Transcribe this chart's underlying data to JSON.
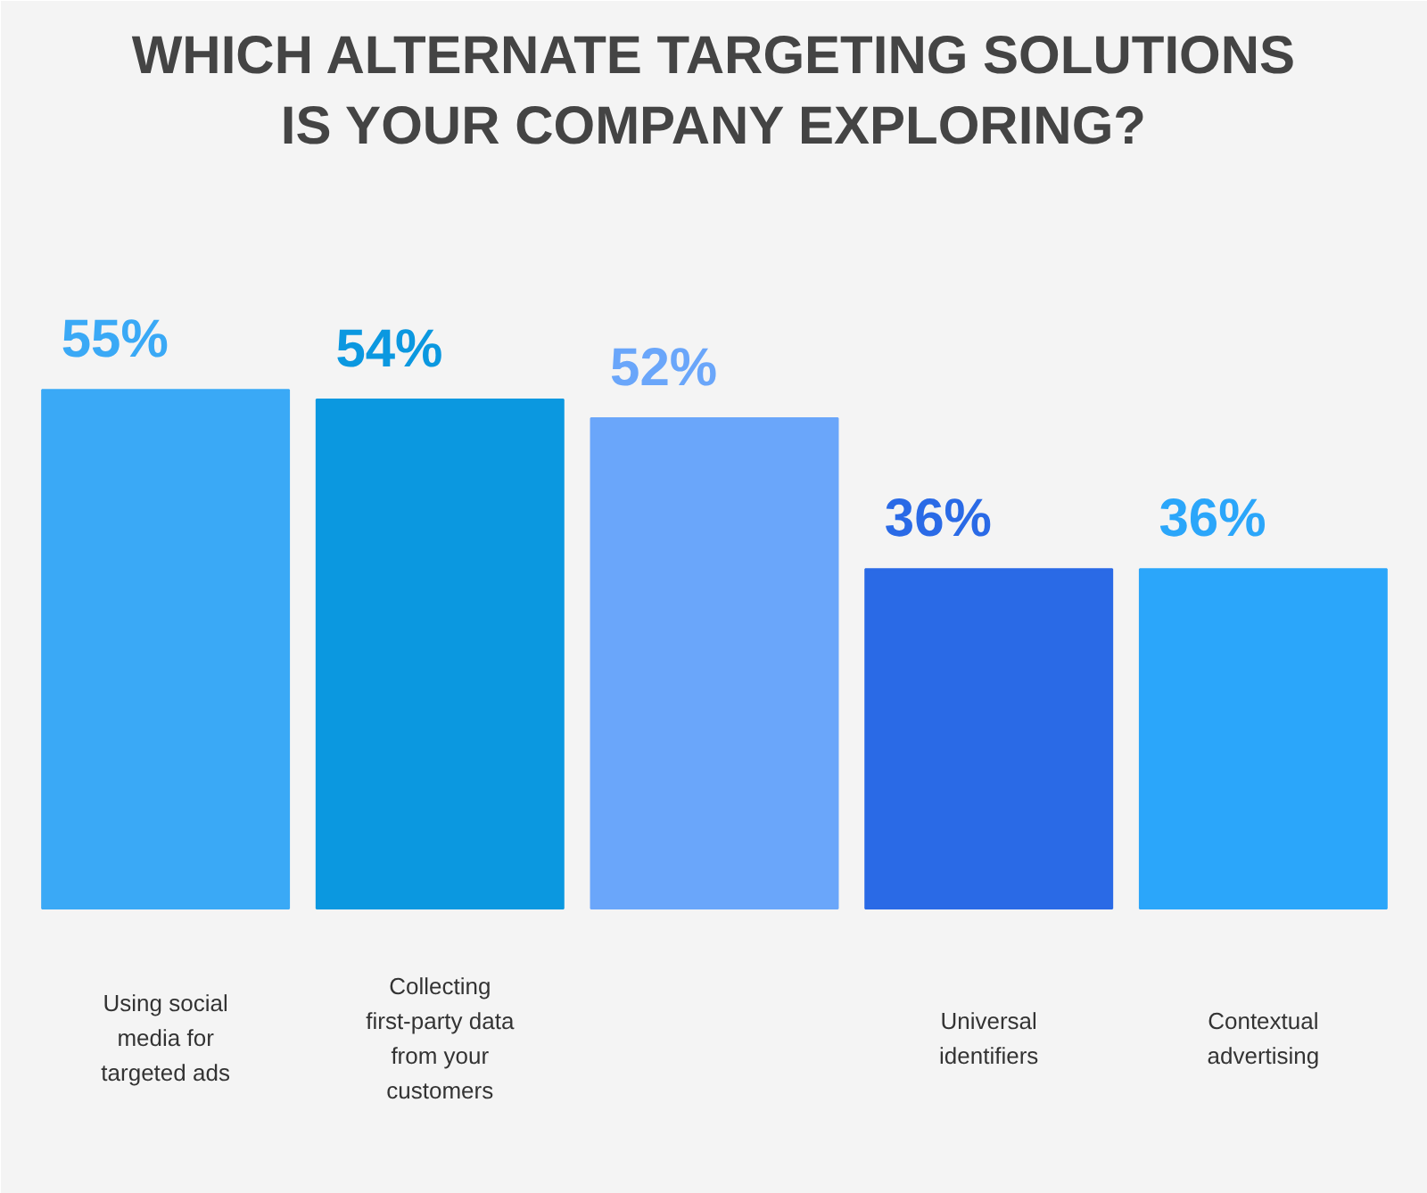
{
  "chart_data": {
    "type": "bar",
    "title": "WHICH ALTERNATE TARGETING SOLUTIONS IS YOUR COMPANY EXPLORING?",
    "categories": [
      "Using social media for targeted ads",
      "Collecting first-party data from your customers",
      null,
      "Universal identifiers",
      "Contextual advertising"
    ],
    "values": [
      55,
      54,
      52,
      36,
      36
    ],
    "colors": [
      "#3aa9f6",
      "#0b98e0",
      "#6aa6fa",
      "#2a6ae6",
      "#2ba6fa"
    ],
    "value_labels": [
      "55%",
      "54%",
      "52%",
      "36%",
      "36%"
    ]
  }
}
